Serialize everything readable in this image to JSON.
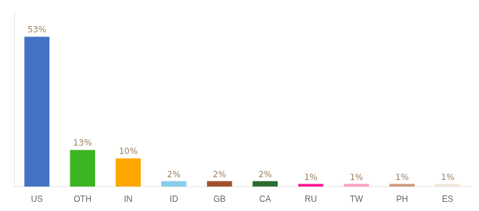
{
  "chart_data": {
    "type": "bar",
    "categories": [
      "US",
      "OTH",
      "IN",
      "ID",
      "GB",
      "CA",
      "RU",
      "TW",
      "PH",
      "ES"
    ],
    "values": [
      53,
      13,
      10,
      2,
      2,
      2,
      1,
      1,
      1,
      1
    ],
    "value_labels": [
      "53%",
      "13%",
      "10%",
      "2%",
      "2%",
      "2%",
      "1%",
      "1%",
      "1%",
      "1%"
    ],
    "colors": [
      "#4472C4",
      "#3CB521",
      "#FFA500",
      "#87CEEB",
      "#A0522D",
      "#2E6B2E",
      "#FF1493",
      "#FF9EC4",
      "#CD9B7A",
      "#F0EAD6"
    ],
    "ylim": [
      0,
      62
    ],
    "grid": false,
    "data_labels": true,
    "tick_labels": "x"
  }
}
